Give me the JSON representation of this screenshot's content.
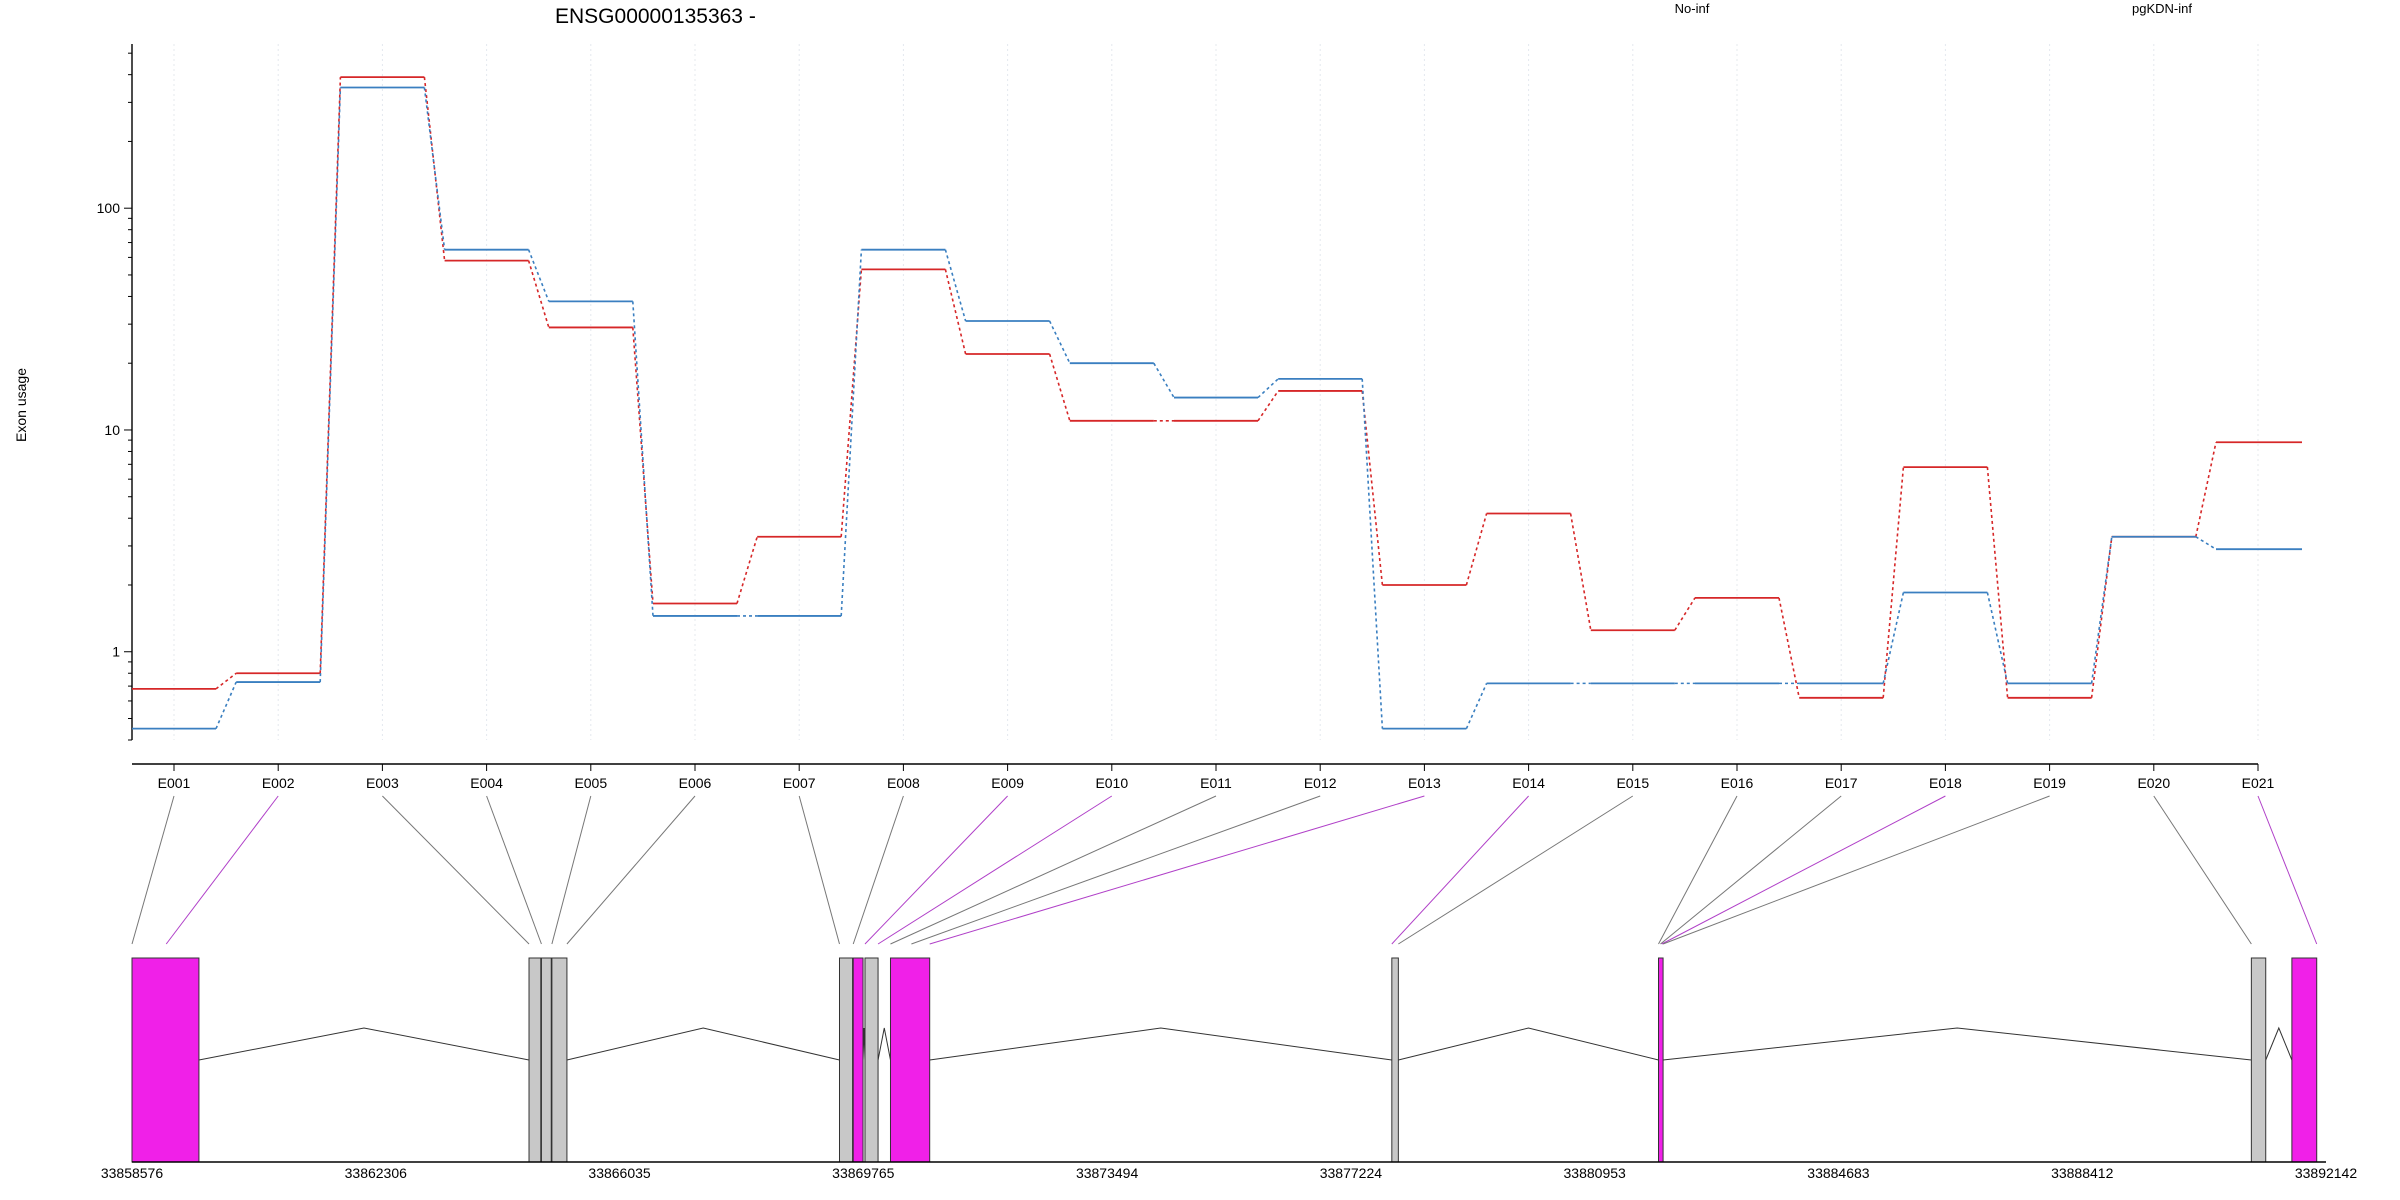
{
  "chart_data": {
    "type": "line",
    "title": "ENSG00000135363 -",
    "ylabel": "Exon usage",
    "xlabel": "",
    "y_scale": "log",
    "ylim": [
      0.4,
      550
    ],
    "y_ticks": [
      {
        "value": 1,
        "label": "1"
      },
      {
        "value": 10,
        "label": "10"
      },
      {
        "value": 100,
        "label": "100"
      }
    ],
    "grid": "vertical",
    "legend_placement": "top",
    "categories": [
      "E001",
      "E002",
      "E003",
      "E004",
      "E005",
      "E006",
      "E007",
      "E008",
      "E009",
      "E010",
      "E011",
      "E012",
      "E013",
      "E014",
      "E015",
      "E016",
      "E017",
      "E018",
      "E019",
      "E020",
      "E021"
    ],
    "series": [
      {
        "name": "No-inf",
        "color": "#d62728",
        "values": [
          0.68,
          0.8,
          390,
          58,
          29,
          1.65,
          3.3,
          53,
          22,
          11,
          11,
          15,
          2.0,
          4.2,
          1.25,
          1.75,
          0.62,
          6.8,
          0.62,
          3.3,
          8.8
        ]
      },
      {
        "name": "pgKDN-inf",
        "color": "#3a7fc0",
        "values": [
          0.45,
          0.73,
          350,
          65,
          38,
          1.45,
          1.45,
          65,
          31,
          20,
          14,
          17,
          0.45,
          0.72,
          0.72,
          0.72,
          0.72,
          1.85,
          0.72,
          3.3,
          2.9
        ]
      }
    ],
    "gene_model": {
      "axis_ticks": [
        "33858576",
        "33862306",
        "33866035",
        "33869765",
        "33873494",
        "33877224",
        "33880953",
        "33884683",
        "33888412",
        "33892142"
      ],
      "exons": [
        {
          "start": 33858576,
          "end": 33859600,
          "highlight": true
        },
        {
          "start": 33864650,
          "end": 33864830,
          "highlight": false
        },
        {
          "start": 33864840,
          "end": 33864990,
          "highlight": false
        },
        {
          "start": 33865000,
          "end": 33865230,
          "highlight": false
        },
        {
          "start": 33869400,
          "end": 33869600,
          "highlight": false
        },
        {
          "start": 33869610,
          "end": 33869760,
          "highlight": true
        },
        {
          "start": 33869790,
          "end": 33869990,
          "highlight": false
        },
        {
          "start": 33870180,
          "end": 33870780,
          "highlight": true
        },
        {
          "start": 33877850,
          "end": 33877950,
          "highlight": false
        },
        {
          "start": 33881930,
          "end": 33882000,
          "highlight": true
        },
        {
          "start": 33891000,
          "end": 33891220,
          "highlight": false
        },
        {
          "start": 33891620,
          "end": 33892000,
          "highlight": true
        }
      ],
      "exon_highlight_color": "#f020e8",
      "exon_plain_color": "#c8c8c8",
      "connector_highlight": [
        false,
        true,
        false,
        false,
        false,
        false,
        false,
        false,
        true,
        true,
        false,
        false,
        true,
        true,
        false,
        false,
        false,
        true,
        false,
        false,
        true
      ],
      "connector_targets": [
        33858576,
        33859100,
        33864650,
        33864840,
        33865000,
        33865230,
        33869400,
        33869610,
        33869790,
        33869990,
        33870180,
        33870500,
        33870780,
        33877850,
        33877950,
        33881930,
        33881960,
        33881980,
        33882000,
        33891000,
        33892000
      ]
    }
  }
}
